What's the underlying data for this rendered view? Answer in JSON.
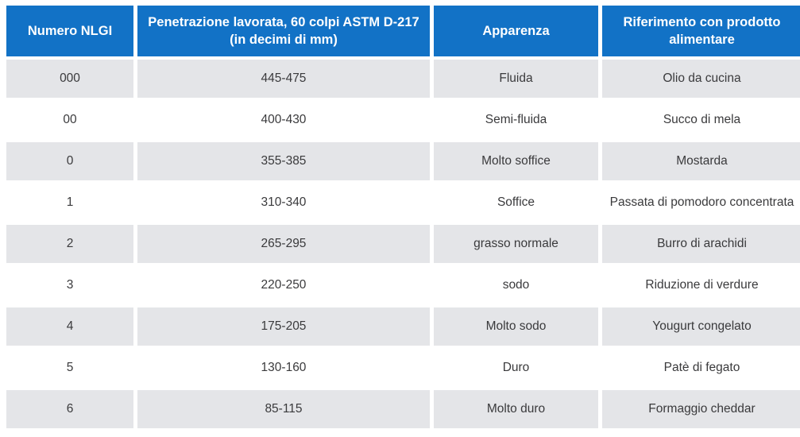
{
  "colors": {
    "header_background": "#1272C6",
    "stripe_row_background": "#E4E5E8",
    "header_text": "#FFFFFF",
    "cell_text": "#3A3A3C"
  },
  "table": {
    "columns": [
      {
        "label": "Numero NLGI"
      },
      {
        "label": "Penetrazione lavorata, 60 colpi ASTM D-217 (in decimi di mm)"
      },
      {
        "label": "Apparenza"
      },
      {
        "label": "Riferimento con prodotto alimentare"
      }
    ],
    "rows": [
      {
        "numero_nlgi": "000",
        "penetrazione": "445-475",
        "apparenza": "Fluida",
        "riferimento": "Olio da cucina"
      },
      {
        "numero_nlgi": "00",
        "penetrazione": "400-430",
        "apparenza": "Semi-fluida",
        "riferimento": "Succo di mela"
      },
      {
        "numero_nlgi": "0",
        "penetrazione": "355-385",
        "apparenza": "Molto soffice",
        "riferimento": "Mostarda"
      },
      {
        "numero_nlgi": "1",
        "penetrazione": "310-340",
        "apparenza": "Soffice",
        "riferimento": "Passata di pomodoro concentrata"
      },
      {
        "numero_nlgi": "2",
        "penetrazione": "265-295",
        "apparenza": "grasso normale",
        "riferimento": "Burro di arachidi"
      },
      {
        "numero_nlgi": "3",
        "penetrazione": "220-250",
        "apparenza": "sodo",
        "riferimento": "Riduzione di verdure"
      },
      {
        "numero_nlgi": "4",
        "penetrazione": "175-205",
        "apparenza": "Molto sodo",
        "riferimento": "Yougurt congelato"
      },
      {
        "numero_nlgi": "5",
        "penetrazione": "130-160",
        "apparenza": "Duro",
        "riferimento": "Patè di fegato"
      },
      {
        "numero_nlgi": "6",
        "penetrazione": "85-115",
        "apparenza": "Molto duro",
        "riferimento": "Formaggio cheddar"
      }
    ]
  }
}
